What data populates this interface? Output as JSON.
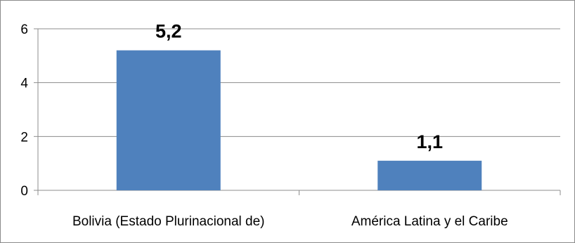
{
  "chart_data": {
    "type": "bar",
    "title": "",
    "xlabel": "",
    "ylabel": "",
    "categories": [
      "Bolivia (Estado Plurinacional de)",
      "América Latina y el Caribe"
    ],
    "values": [
      5.2,
      1.1
    ],
    "data_labels": [
      "5,2",
      "1,1"
    ],
    "ylim": [
      0,
      6
    ],
    "yticks": [
      0,
      2,
      4,
      6
    ],
    "ytick_labels": [
      "0",
      "2",
      "4",
      "6"
    ],
    "grid": true,
    "legend": "none",
    "colors": {
      "bar": "#4f81bd",
      "grid": "#8c8c8c",
      "axis": "#8c8c8c"
    }
  }
}
